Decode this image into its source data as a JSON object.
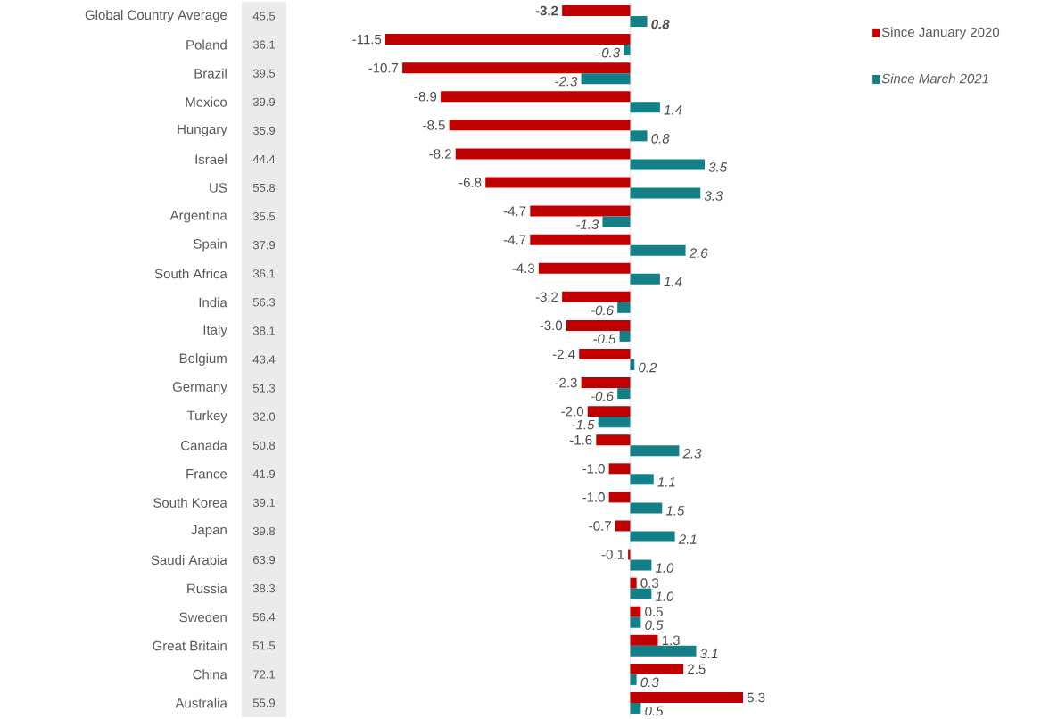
{
  "chart_data": {
    "type": "bar",
    "orientation": "horizontal",
    "legend": "right",
    "tick_labels": "y",
    "categories": [
      "Global Country Average",
      "Poland",
      "Brazil",
      "Mexico",
      "Hungary",
      "Israel",
      "US",
      "Argentina",
      "Spain",
      "South Africa",
      "India",
      "Italy",
      "Belgium",
      "Germany",
      "Turkey",
      "Canada",
      "France",
      "South Korea",
      "Japan",
      "Saudi Arabia",
      "Russia",
      "Sweden",
      "Great Britain",
      "China",
      "Australia"
    ],
    "series": [
      {
        "name": "Since January 2020",
        "color": "#c00000",
        "values": [
          -3.2,
          -11.5,
          -10.7,
          -8.9,
          -8.5,
          -8.2,
          -6.8,
          -4.7,
          -4.7,
          -4.3,
          -3.2,
          -3.0,
          -2.4,
          -2.3,
          -2.0,
          -1.6,
          -1.0,
          -1.0,
          -0.7,
          -0.1,
          0.3,
          0.5,
          1.3,
          2.5,
          5.3
        ],
        "value_labels": [
          "**-3.2**",
          "-11.5",
          "-10.7",
          "-8.9",
          "-8.5",
          "-8.2",
          "-6.8",
          "-4.7",
          "-4.7",
          "-4.3",
          "-3.2",
          "-3.0",
          "-2.4",
          "-2.3",
          "-2.0",
          "-1.6",
          "-1.0",
          "-1.0",
          "-0.7",
          "-0.1",
          "0.3",
          "0.5",
          "1.3",
          "2.5",
          "5.3"
        ]
      },
      {
        "name": "*Since March 2021*",
        "color": "#138087",
        "values": [
          0.8,
          -0.3,
          -2.3,
          1.4,
          0.8,
          3.5,
          3.3,
          -1.3,
          2.6,
          1.4,
          -0.6,
          -0.5,
          0.2,
          -0.6,
          -1.5,
          2.3,
          1.1,
          1.5,
          2.1,
          1.0,
          1.0,
          0.5,
          3.1,
          0.3,
          0.5
        ],
        "value_labels": [
          "**0.8**",
          "-0.3",
          "-2.3",
          "1.4",
          "0.8",
          "3.5",
          "3.3",
          "-1.3",
          "2.6",
          "1.4",
          "-0.6",
          "-0.5",
          "0.2",
          "-0.6",
          "-1.5",
          "2.3",
          "1.1",
          "1.5",
          "2.1",
          "1.0",
          "1.0",
          "0.5",
          "3.1",
          "0.3",
          "0.5"
        ]
      }
    ],
    "annotations": [
      "45.5",
      "36.1",
      "39.5",
      "39.9",
      "35.9",
      "44.4",
      "55.8",
      "35.5",
      "37.9",
      "36.1",
      "56.3",
      "38.1",
      "43.4",
      "51.3",
      "32.0",
      "50.8",
      "41.9",
      "39.1",
      "39.8",
      "63.9",
      "38.3",
      "56.4",
      "51.5",
      "72.1",
      "55.9"
    ]
  }
}
